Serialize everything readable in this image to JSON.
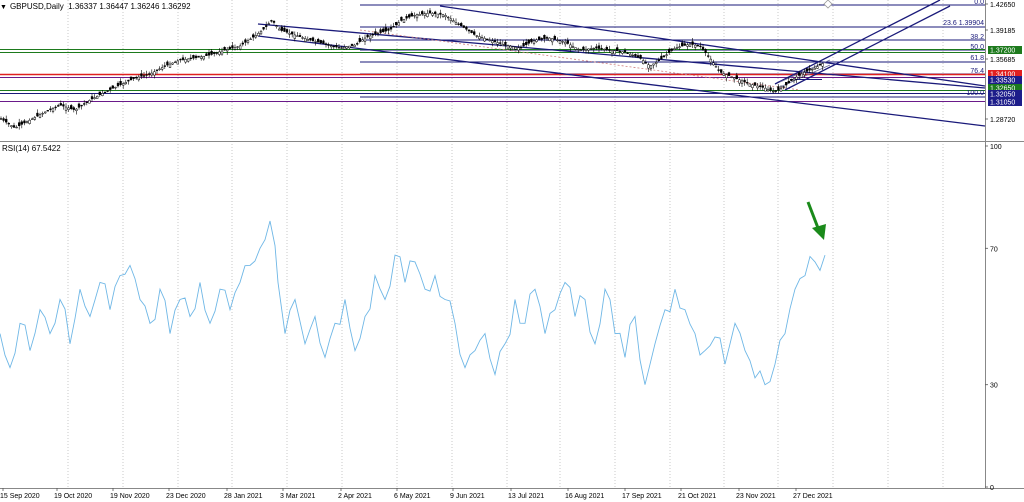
{
  "header": {
    "symbol": "GBPUSD,Daily",
    "ohlc": "1.36337 1.36447 1.36246 1.36292"
  },
  "rsi": {
    "label": "RSI(14) 67.5422",
    "scale": [
      "100",
      "70",
      "30",
      "0"
    ],
    "color": "#6fb7e6",
    "arrow_color": "#1a8a1a"
  },
  "price_scale": {
    "labels": [
      "1.42650",
      "1.39185",
      "1.35685",
      "1.28720"
    ]
  },
  "fibonacci": [
    {
      "text": "0.0"
    },
    {
      "text": "23.6 1.39904"
    },
    {
      "text": "38.2"
    },
    {
      "text": "50.0"
    },
    {
      "text": "61.8"
    },
    {
      "text": "76.4"
    },
    {
      "text": "100.0"
    }
  ],
  "price_tags": [
    {
      "text": "1.37200",
      "color": "#1d7a1d"
    },
    {
      "text": "1.34100",
      "color": "#e02020"
    },
    {
      "text": "1.33530",
      "color": "#1d1d8a"
    },
    {
      "text": "1.32650",
      "color": "#1d7a1d"
    },
    {
      "text": "1.32050",
      "color": "#1d1d8a"
    },
    {
      "text": "1.31050",
      "color": "#1d1d8a"
    }
  ],
  "x_axis": {
    "dates": [
      "15 Sep 2020",
      "19 Oct 2020",
      "19 Nov 2020",
      "23 Dec 2020",
      "28 Jan 2021",
      "3 Mar 2021",
      "2 Apr 2021",
      "6 May 2021",
      "9 Jun 2021",
      "13 Jul 2021",
      "16 Aug 2021",
      "17 Sep 2021",
      "21 Oct 2021",
      "23 Nov 2021",
      "27 Dec 2021"
    ]
  },
  "colors": {
    "trend_blue": "#1a1a7a",
    "hline_green": "#1d7a1d",
    "hline_red": "#e02020",
    "hline_purple": "#6a1a8a",
    "grid": "#c8c8c8"
  }
}
